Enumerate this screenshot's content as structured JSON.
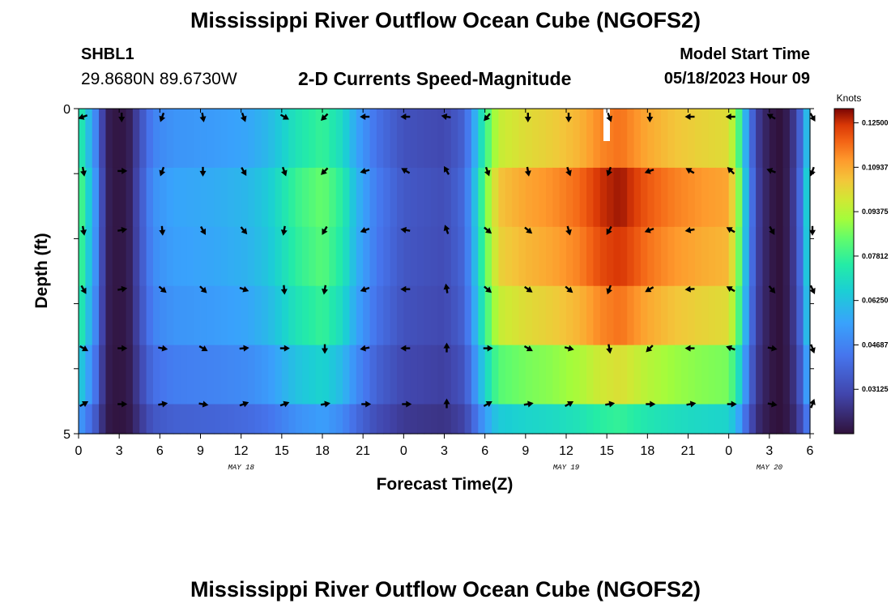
{
  "header": {
    "title": "Mississippi River Outflow Ocean Cube (NGOFS2)",
    "station": "SHBL1",
    "coords": "29.8680N  89.6730W",
    "subtitle": "2-D Currents Speed-Magnitude",
    "model_start_label": "Model Start Time",
    "model_start_value": "05/18/2023 Hour 09"
  },
  "footer": {
    "title_repeat": "Mississippi River Outflow Ocean Cube (NGOFS2)"
  },
  "chart_data": {
    "type": "heatmap",
    "title": "2-D Currents Speed-Magnitude",
    "xlabel": "Forecast Time(Z)",
    "ylabel": "Depth (ft)",
    "ylim": [
      0,
      5
    ],
    "y_ticks": [
      "0",
      "5"
    ],
    "x_ticks": [
      "0",
      "3",
      "6",
      "9",
      "12",
      "15",
      "18",
      "21",
      "0",
      "3",
      "6",
      "9",
      "12",
      "15",
      "18",
      "21",
      "0",
      "3",
      "6"
    ],
    "date_labels": [
      {
        "label": "MAY 18",
        "hour": 12
      },
      {
        "label": "MAY 19",
        "hour": 36
      },
      {
        "label": "MAY 20",
        "hour": 51
      }
    ],
    "hours_span": [
      0,
      54
    ],
    "depth_layers": 6,
    "colorbar": {
      "title": "Knots",
      "range": [
        0.01563,
        0.13
      ],
      "tick_labels": [
        "0.12500",
        "0.10937",
        "0.09375",
        "0.07812",
        "0.06250",
        "0.04687",
        "0.03125"
      ],
      "tick_values": [
        0.125,
        0.10937,
        0.09375,
        0.07812,
        0.0625,
        0.04687,
        0.03125
      ]
    },
    "speed_profile": [
      {
        "h": 0,
        "v": 0.085
      },
      {
        "h": 0.6,
        "v": 0.07
      },
      {
        "h": 1.3,
        "v": 0.05
      },
      {
        "h": 2.0,
        "v": 0.02
      },
      {
        "h": 3.0,
        "v": 0.016
      },
      {
        "h": 3.8,
        "v": 0.02
      },
      {
        "h": 4.6,
        "v": 0.035
      },
      {
        "h": 5.5,
        "v": 0.05
      },
      {
        "h": 7,
        "v": 0.055
      },
      {
        "h": 10,
        "v": 0.057
      },
      {
        "h": 12.5,
        "v": 0.06
      },
      {
        "h": 14,
        "v": 0.065
      },
      {
        "h": 16,
        "v": 0.078
      },
      {
        "h": 18,
        "v": 0.085
      },
      {
        "h": 19.5,
        "v": 0.075
      },
      {
        "h": 20.5,
        "v": 0.06
      },
      {
        "h": 22,
        "v": 0.045
      },
      {
        "h": 24,
        "v": 0.035
      },
      {
        "h": 27,
        "v": 0.032
      },
      {
        "h": 28.5,
        "v": 0.04
      },
      {
        "h": 29.2,
        "v": 0.06
      },
      {
        "h": 30,
        "v": 0.085
      },
      {
        "h": 31,
        "v": 0.105
      },
      {
        "h": 33,
        "v": 0.11
      },
      {
        "h": 35,
        "v": 0.113
      },
      {
        "h": 37,
        "v": 0.118
      },
      {
        "h": 38.5,
        "v": 0.125
      },
      {
        "h": 40,
        "v": 0.128
      },
      {
        "h": 42,
        "v": 0.12
      },
      {
        "h": 44,
        "v": 0.115
      },
      {
        "h": 46,
        "v": 0.112
      },
      {
        "h": 48,
        "v": 0.11
      },
      {
        "h": 48.7,
        "v": 0.09
      },
      {
        "h": 49.3,
        "v": 0.06
      },
      {
        "h": 50,
        "v": 0.03
      },
      {
        "h": 51,
        "v": 0.018
      },
      {
        "h": 52,
        "v": 0.015
      },
      {
        "h": 53,
        "v": 0.03
      },
      {
        "h": 53.5,
        "v": 0.05
      },
      {
        "h": 54,
        "v": 0.08
      }
    ],
    "depth_factor": [
      0.9,
      1.0,
      0.97,
      0.9,
      0.75,
      0.55
    ],
    "vector_hours": [
      0,
      3,
      6,
      9,
      12,
      15,
      18,
      21,
      24,
      27,
      30,
      33,
      36,
      39,
      42,
      45,
      48,
      51,
      54
    ],
    "vector_directions_deg": [
      [
        250,
        180,
        200,
        170,
        160,
        120,
        225,
        270,
        270,
        280,
        220,
        180,
        180,
        160,
        180,
        270,
        270,
        300,
        150
      ],
      [
        170,
        90,
        200,
        180,
        150,
        160,
        225,
        255,
        300,
        330,
        160,
        170,
        160,
        200,
        250,
        300,
        315,
        290,
        200
      ],
      [
        170,
        80,
        175,
        150,
        140,
        190,
        210,
        250,
        280,
        340,
        130,
        130,
        165,
        210,
        250,
        260,
        300,
        150,
        180
      ],
      [
        150,
        80,
        130,
        135,
        110,
        175,
        190,
        250,
        270,
        350,
        130,
        125,
        130,
        200,
        240,
        265,
        300,
        140,
        155
      ],
      [
        120,
        90,
        100,
        120,
        85,
        90,
        180,
        260,
        270,
        0,
        90,
        120,
        105,
        170,
        225,
        270,
        290,
        100,
        160
      ],
      [
        60,
        90,
        80,
        100,
        70,
        70,
        80,
        90,
        90,
        0,
        60,
        80,
        60,
        80,
        90,
        80,
        90,
        100,
        20
      ]
    ]
  }
}
